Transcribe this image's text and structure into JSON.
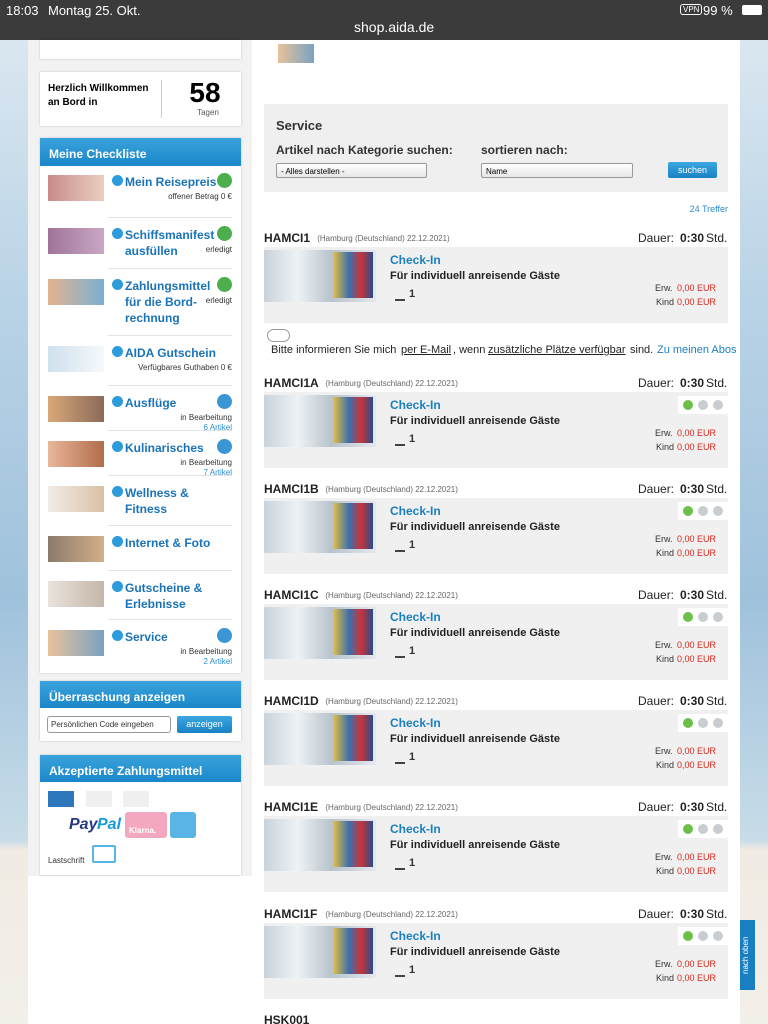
{
  "status_bar": {
    "time": "18:03",
    "date": "Montag 25. Okt.",
    "vpn": "VPN",
    "battery": "99 %",
    "url": "shop.aida.de"
  },
  "sidebar": {
    "welcome": {
      "text": "Herzlich Willkommen an Bord in",
      "days": "58",
      "days_unit": "Tagen"
    },
    "checklist": {
      "title": "Meine Checkliste",
      "items": [
        {
          "label": "Mein Reisepreis",
          "status": "offener Betrag 0 €",
          "icon": "check"
        },
        {
          "label": "Schiffsmanifest ausfüllen",
          "status": "erledigt",
          "icon": "check"
        },
        {
          "label": "Zahlungsmittel für die Bord-rechnung",
          "status": "erledigt",
          "icon": "check"
        },
        {
          "label": "AIDA Gutschein",
          "status": "Verfügbares Guthaben 0 €"
        },
        {
          "label": "Ausflüge",
          "status": "in Bearbeitung",
          "count": "6 Artikel",
          "icon": "clock"
        },
        {
          "label": "Kulinarisches",
          "status": "in Bearbeitung",
          "count": "7 Artikel",
          "icon": "clock"
        },
        {
          "label": "Wellness & Fitness"
        },
        {
          "label": "Internet & Foto"
        },
        {
          "label": "Gutscheine & Erlebnisse"
        },
        {
          "label": "Service",
          "status": "in Bearbeitung",
          "count": "2 Artikel",
          "icon": "clock"
        }
      ]
    },
    "surprise": {
      "title": "Überraschung anzeigen",
      "placeholder": "Persönlichen Code eingeben",
      "button": "anzeigen"
    },
    "payment": {
      "title": "Akzeptierte Zahlungsmittel",
      "paypal_pay": "Pay",
      "paypal_pal": "Pal",
      "klarna": "Klarna.",
      "lastschrift": "Lastschrift"
    }
  },
  "search": {
    "title": "Service",
    "category_label": "Artikel nach Kategorie suchen:",
    "category_value": "- Alles darstellen -",
    "sort_label": "sortieren nach:",
    "sort_value": "Name",
    "button": "suchen",
    "hits": "24 Treffer"
  },
  "labels": {
    "duration": "Dauer:",
    "unit": "Std.",
    "adult": "Erw.",
    "child": "Kind"
  },
  "products": [
    {
      "code": "HAMCI1",
      "location": "(Hamburg (Deutschland) 22.12.2021)",
      "duration": "0:30",
      "title": "Check-In",
      "subtitle": "Für individuell anreisende Gäste",
      "quantity": "1",
      "adult_price": "0,00 EUR",
      "child_price": "0,00 EUR"
    },
    {
      "code": "HAMCI1A",
      "location": "(Hamburg (Deutschland) 22.12.2021)",
      "duration": "0:30",
      "title": "Check-In",
      "subtitle": "Für individuell anreisende Gäste",
      "quantity": "1",
      "adult_price": "0,00 EUR",
      "child_price": "0,00 EUR"
    },
    {
      "code": "HAMCI1B",
      "location": "(Hamburg (Deutschland) 22.12.2021)",
      "duration": "0:30",
      "title": "Check-In",
      "subtitle": "Für individuell anreisende Gäste",
      "quantity": "1",
      "adult_price": "0,00 EUR",
      "child_price": "0,00 EUR"
    },
    {
      "code": "HAMCI1C",
      "location": "(Hamburg (Deutschland) 22.12.2021)",
      "duration": "0:30",
      "title": "Check-In",
      "subtitle": "Für individuell anreisende Gäste",
      "quantity": "1",
      "adult_price": "0,00 EUR",
      "child_price": "0,00 EUR"
    },
    {
      "code": "HAMCI1D",
      "location": "(Hamburg (Deutschland) 22.12.2021)",
      "duration": "0:30",
      "title": "Check-In",
      "subtitle": "Für individuell anreisende Gäste",
      "quantity": "1",
      "adult_price": "0,00 EUR",
      "child_price": "0,00 EUR"
    },
    {
      "code": "HAMCI1E",
      "location": "(Hamburg (Deutschland) 22.12.2021)",
      "duration": "0:30",
      "title": "Check-In",
      "subtitle": "Für individuell anreisende Gäste",
      "quantity": "1",
      "adult_price": "0,00 EUR",
      "child_price": "0,00 EUR"
    },
    {
      "code": "HAMCI1F",
      "location": "(Hamburg (Deutschland) 22.12.2021)",
      "duration": "0:30",
      "title": "Check-In",
      "subtitle": "Für individuell anreisende Gäste",
      "quantity": "1",
      "adult_price": "0,00 EUR",
      "child_price": "0,00 EUR"
    }
  ],
  "notify": {
    "prefix": "Bitte informieren Sie mich",
    "email": "per E-Mail",
    "middle": ", wenn",
    "places": "zusätzliche Plätze verfügbar",
    "suffix": "sind.",
    "abos": "Zu meinen Abos"
  },
  "next_code": "HSK001",
  "back_to_top": "nach oben"
}
